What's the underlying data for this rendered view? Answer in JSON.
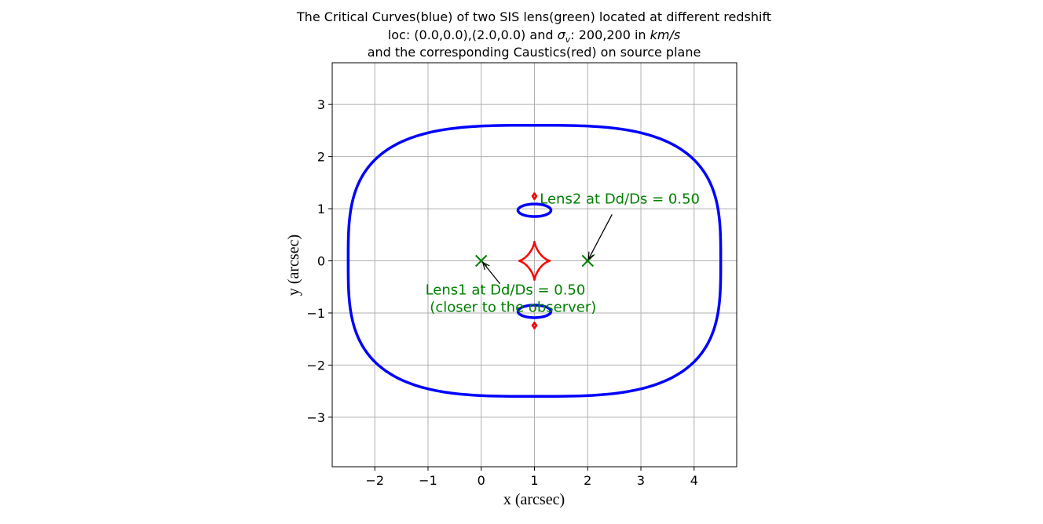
{
  "chart_data": {
    "type": "line",
    "title": {
      "line1": "The Critical Curves(blue) of two SIS lens(green) located at different redshift",
      "line2_prefix": "loc: (0.0,0.0),(2.0,0.0) and ",
      "line2_sigma": "σ",
      "line2_sigma_sub": "v",
      "line2_mid": ": 200,200 in ",
      "line2_unit": "km/s",
      "line3": "and the corresponding Caustics(red) on source plane"
    },
    "xlabel": "x (arcsec)",
    "ylabel": "y (arcsec)",
    "xlim": [
      -2.8,
      4.8
    ],
    "ylim": [
      -3.95,
      3.8
    ],
    "xticks": [
      -2,
      -1,
      0,
      1,
      2,
      3,
      4
    ],
    "yticks": [
      -3,
      -2,
      -1,
      0,
      1,
      2,
      3
    ],
    "xtick_labels": [
      "−2",
      "−1",
      "0",
      "1",
      "2",
      "3",
      "4"
    ],
    "ytick_labels": [
      "−3",
      "−2",
      "−1",
      "0",
      "1",
      "2",
      "3"
    ],
    "grid": true,
    "colors": {
      "critical": "#0000ff",
      "caustic": "#ff0000",
      "lens": "#008000",
      "grid": "#b0b0b0"
    },
    "critical_curves": {
      "outer": {
        "center": [
          1.0,
          0.0
        ],
        "ax": 3.5,
        "ay": 2.6,
        "power": 3.2
      },
      "upper_loop": {
        "center": [
          1.0,
          0.97
        ],
        "ax": 0.31,
        "ay": 0.12
      },
      "lower_loop": {
        "center": [
          1.0,
          -0.97
        ],
        "ax": 0.31,
        "ay": 0.12
      }
    },
    "caustics": {
      "central_astroid": {
        "center": [
          1.0,
          0.0
        ],
        "ax": 0.3,
        "ay": 0.38
      },
      "upper_cusp": {
        "center": [
          1.0,
          1.24
        ],
        "ax": 0.05,
        "ay": 0.07
      },
      "lower_cusp": {
        "center": [
          1.0,
          -1.24
        ],
        "ax": 0.05,
        "ay": 0.07
      }
    },
    "lenses": [
      {
        "x": 0.0,
        "y": 0.0,
        "label": "Lens1 at Dd/Ds = 0.50\n (closer to the observer)",
        "text_pos": [
          -1.05,
          -0.65
        ]
      },
      {
        "x": 2.0,
        "y": 0.0,
        "label": "Lens2 at Dd/Ds = 0.50",
        "text_pos": [
          1.1,
          1.1
        ]
      }
    ]
  }
}
